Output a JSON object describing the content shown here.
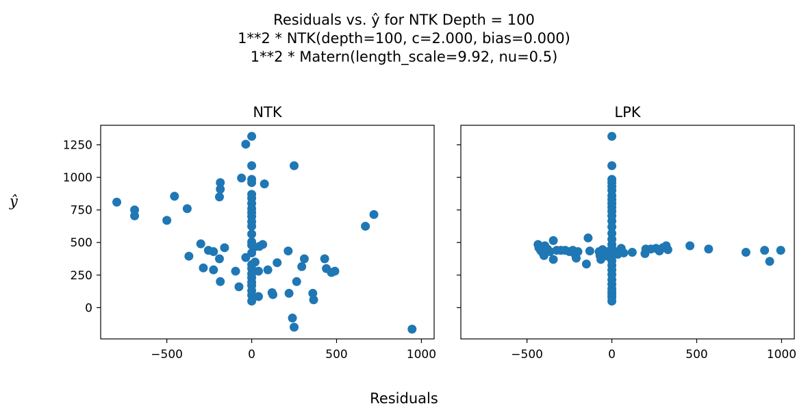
{
  "figure": {
    "title_lines": [
      "Residuals vs. ŷ for NTK Depth = 100",
      "1**2 * NTK(depth=100, c=2.000, bias=0.000)",
      "1**2 * Matern(length_scale=9.92, nu=0.5)"
    ],
    "xlabel": "Residuals",
    "ylabel": "ŷ",
    "marker_color": "#1f77b4"
  },
  "chart_data": [
    {
      "type": "scatter",
      "title": "NTK",
      "xlim": [
        -890,
        1075
      ],
      "ylim": [
        -240,
        1400
      ],
      "xticks": [
        -500,
        0,
        500,
        1000
      ],
      "yticks": [
        0,
        250,
        500,
        750,
        1000,
        1250
      ],
      "xtick_labels": [
        "−500",
        "0",
        "500",
        "1000"
      ],
      "ytick_labels": [
        "0",
        "250",
        "500",
        "750",
        "1000",
        "1250"
      ],
      "grid": false,
      "points": [
        [
          0,
          1315
        ],
        [
          -35,
          1255
        ],
        [
          0,
          1090
        ],
        [
          250,
          1090
        ],
        [
          -60,
          995
        ],
        [
          0,
          985
        ],
        [
          0,
          960
        ],
        [
          75,
          950
        ],
        [
          -185,
          960
        ],
        [
          -185,
          910
        ],
        [
          -190,
          850
        ],
        [
          0,
          870
        ],
        [
          0,
          840
        ],
        [
          -455,
          855
        ],
        [
          -795,
          810
        ],
        [
          0,
          800
        ],
        [
          -690,
          750
        ],
        [
          -380,
          760
        ],
        [
          0,
          760
        ],
        [
          0,
          730
        ],
        [
          720,
          715
        ],
        [
          -690,
          705
        ],
        [
          0,
          700
        ],
        [
          -500,
          670
        ],
        [
          0,
          660
        ],
        [
          670,
          625
        ],
        [
          0,
          625
        ],
        [
          0,
          565
        ],
        [
          -300,
          490
        ],
        [
          0,
          505
        ],
        [
          0,
          480
        ],
        [
          15,
          465
        ],
        [
          45,
          470
        ],
        [
          65,
          485
        ],
        [
          -160,
          460
        ],
        [
          -255,
          440
        ],
        [
          -225,
          430
        ],
        [
          215,
          435
        ],
        [
          0,
          420
        ],
        [
          -370,
          395
        ],
        [
          -35,
          385
        ],
        [
          -190,
          375
        ],
        [
          310,
          375
        ],
        [
          430,
          375
        ],
        [
          20,
          350
        ],
        [
          150,
          345
        ],
        [
          295,
          315
        ],
        [
          0,
          330
        ],
        [
          -285,
          305
        ],
        [
          -225,
          290
        ],
        [
          -95,
          280
        ],
        [
          95,
          290
        ],
        [
          440,
          300
        ],
        [
          470,
          270
        ],
        [
          490,
          280
        ],
        [
          0,
          300
        ],
        [
          40,
          280
        ],
        [
          0,
          260
        ],
        [
          0,
          230
        ],
        [
          -185,
          200
        ],
        [
          265,
          200
        ],
        [
          0,
          195
        ],
        [
          -75,
          160
        ],
        [
          0,
          170
        ],
        [
          0,
          130
        ],
        [
          120,
          115
        ],
        [
          125,
          100
        ],
        [
          220,
          110
        ],
        [
          360,
          110
        ],
        [
          0,
          95
        ],
        [
          40,
          85
        ],
        [
          365,
          60
        ],
        [
          0,
          50
        ],
        [
          240,
          -80
        ],
        [
          250,
          -150
        ],
        [
          945,
          -165
        ]
      ]
    },
    {
      "type": "scatter",
      "title": "LPK",
      "xlim": [
        -890,
        1075
      ],
      "ylim": [
        -240,
        1400
      ],
      "xticks": [
        -500,
        0,
        500,
        1000
      ],
      "yticks": [
        0,
        250,
        500,
        750,
        1000,
        1250
      ],
      "xtick_labels": [
        "−500",
        "0",
        "500",
        "1000"
      ],
      "ytick_labels": [
        "",
        "",
        "",
        "",
        "",
        ""
      ],
      "grid": false,
      "points": [
        [
          0,
          1315
        ],
        [
          0,
          1090
        ],
        [
          0,
          985
        ],
        [
          0,
          960
        ],
        [
          0,
          930
        ],
        [
          0,
          900
        ],
        [
          0,
          860
        ],
        [
          0,
          830
        ],
        [
          0,
          800
        ],
        [
          0,
          770
        ],
        [
          0,
          740
        ],
        [
          0,
          705
        ],
        [
          0,
          665
        ],
        [
          0,
          620
        ],
        [
          0,
          570
        ],
        [
          0,
          525
        ],
        [
          0,
          485
        ],
        [
          0,
          455
        ],
        [
          0,
          430
        ],
        [
          0,
          395
        ],
        [
          0,
          360
        ],
        [
          0,
          325
        ],
        [
          0,
          290
        ],
        [
          0,
          255
        ],
        [
          0,
          215
        ],
        [
          0,
          180
        ],
        [
          0,
          145
        ],
        [
          0,
          120
        ],
        [
          0,
          100
        ],
        [
          0,
          80
        ],
        [
          0,
          50
        ],
        [
          -435,
          485
        ],
        [
          -430,
          460
        ],
        [
          -420,
          440
        ],
        [
          -410,
          425
        ],
        [
          -400,
          400
        ],
        [
          -395,
          475
        ],
        [
          -380,
          450
        ],
        [
          -365,
          430
        ],
        [
          -345,
          515
        ],
        [
          -345,
          370
        ],
        [
          -325,
          440
        ],
        [
          -300,
          440
        ],
        [
          -275,
          440
        ],
        [
          -250,
          430
        ],
        [
          -230,
          440
        ],
        [
          -215,
          405
        ],
        [
          -210,
          380
        ],
        [
          -200,
          430
        ],
        [
          -140,
          535
        ],
        [
          -150,
          335
        ],
        [
          -130,
          435
        ],
        [
          -75,
          430
        ],
        [
          -70,
          400
        ],
        [
          -65,
          370
        ],
        [
          -55,
          445
        ],
        [
          -35,
          430
        ],
        [
          -25,
          395
        ],
        [
          20,
          430
        ],
        [
          35,
          410
        ],
        [
          55,
          455
        ],
        [
          70,
          420
        ],
        [
          120,
          425
        ],
        [
          195,
          415
        ],
        [
          200,
          450
        ],
        [
          230,
          450
        ],
        [
          260,
          455
        ],
        [
          280,
          435
        ],
        [
          300,
          460
        ],
        [
          320,
          475
        ],
        [
          330,
          445
        ],
        [
          460,
          475
        ],
        [
          570,
          450
        ],
        [
          790,
          425
        ],
        [
          900,
          440
        ],
        [
          930,
          355
        ],
        [
          995,
          440
        ]
      ]
    }
  ]
}
